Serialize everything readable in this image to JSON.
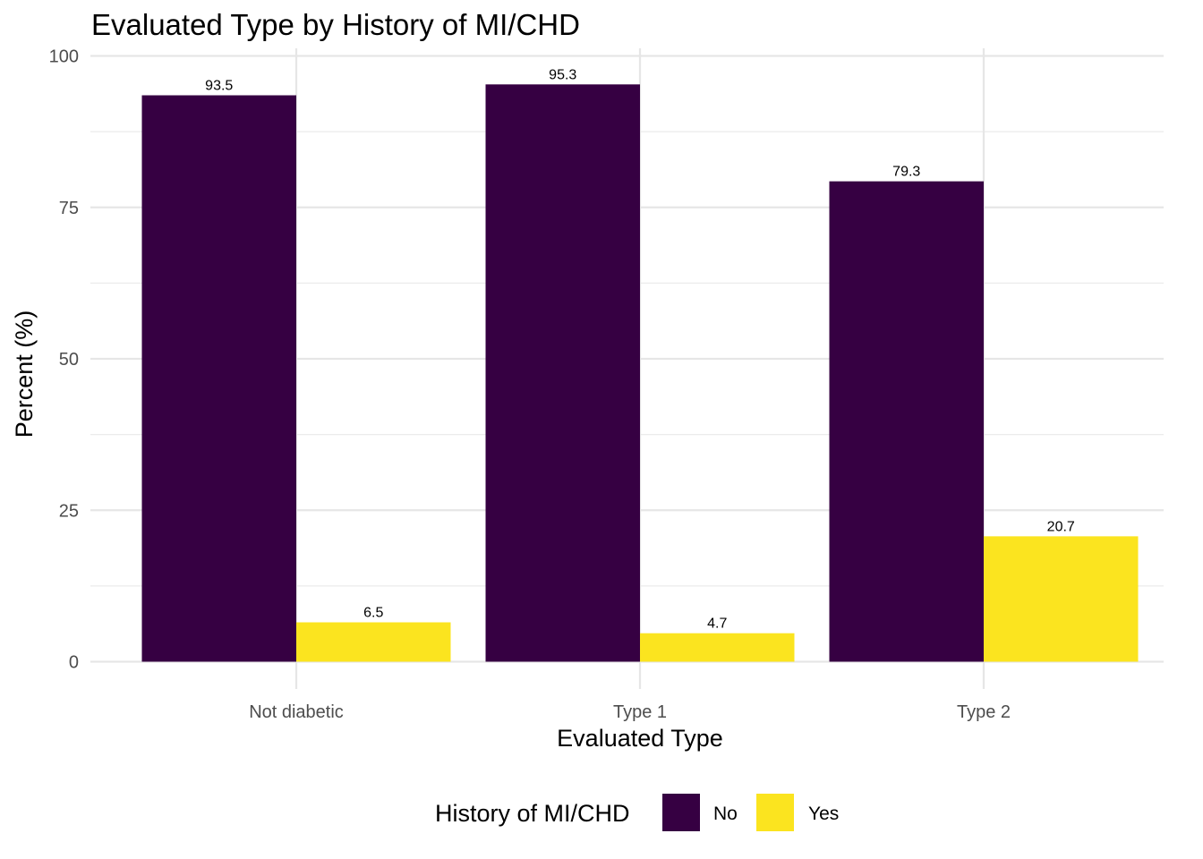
{
  "chart_data": {
    "type": "bar",
    "title": "Evaluated Type by History of MI/CHD",
    "xlabel": "Evaluated Type",
    "ylabel": "Percent (%)",
    "categories": [
      "Not diabetic",
      "Type 1",
      "Type 2"
    ],
    "series": [
      {
        "name": "No",
        "values": [
          93.5,
          95.3,
          79.3
        ],
        "color": "#360042"
      },
      {
        "name": "Yes",
        "values": [
          6.5,
          4.7,
          20.7
        ],
        "color": "#fbe41f"
      }
    ],
    "data_labels": [
      [
        "93.5",
        "95.3",
        "79.3"
      ],
      [
        "6.5",
        "4.7",
        "20.7"
      ]
    ],
    "ylim": [
      0,
      100
    ],
    "yticks": [
      0,
      25,
      50,
      75,
      100
    ],
    "grid": true,
    "legend": {
      "title": "History of MI/CHD",
      "position": "bottom"
    }
  }
}
